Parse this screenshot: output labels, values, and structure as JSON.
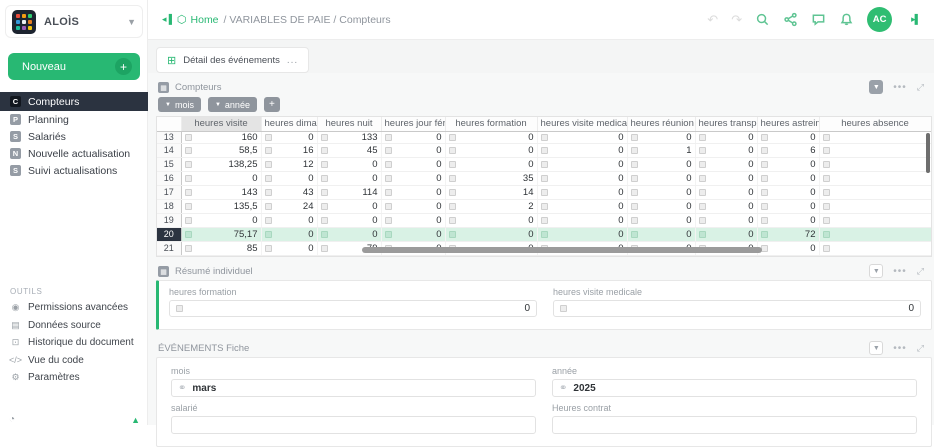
{
  "colors": {
    "accent": "#28b873",
    "selected_row": "#d9f2e5",
    "sidebar_active": "#2b3340"
  },
  "sidebar": {
    "logo_text": "ALOÌS",
    "new_button_label": "Nouveau",
    "nav_items": [
      {
        "badge": "C",
        "label": "Compteurs",
        "active": true
      },
      {
        "badge": "P",
        "label": "Planning",
        "active": false
      },
      {
        "badge": "S",
        "label": "Salariés",
        "active": false
      },
      {
        "badge": "N",
        "label": "Nouvelle actualisation",
        "active": false
      },
      {
        "badge": "S",
        "label": "Suivi actualisations",
        "active": false
      }
    ],
    "tools_title": "OUTILS",
    "tools": [
      {
        "icon": "permissions-icon",
        "glyph": "◉",
        "label": "Permissions avancées"
      },
      {
        "icon": "database-icon",
        "glyph": "▤",
        "label": "Données source"
      },
      {
        "icon": "history-icon",
        "glyph": "⊡",
        "label": "Historique du document"
      },
      {
        "icon": "code-icon",
        "glyph": "</>",
        "label": "Vue du code"
      },
      {
        "icon": "gear-icon",
        "glyph": "⚙",
        "label": "Paramètres"
      }
    ]
  },
  "header": {
    "breadcrumb_home": "Home",
    "breadcrumb_rest": "/ VARIABLES DE PAIE / Compteurs",
    "avatar_initials": "AC"
  },
  "tabbar": {
    "tab_label": "Détail des événements",
    "tab_menu": "...",
    "tab_icon": "⊞"
  },
  "counters": {
    "title": "Compteurs",
    "filter_buttons": [
      "mois",
      "année"
    ],
    "add_button": "+",
    "columns": [
      "",
      "heures visite",
      "heures diman...",
      "heures nuit",
      "heures jour férié",
      "heures formation",
      "heures visite medicale",
      "heures réunion",
      "heures transport",
      "heures astreinte",
      "heures absence"
    ],
    "sorted_column": "heures visite",
    "rows": [
      {
        "num": "13",
        "clipped": true,
        "selected": false,
        "values": [
          "160",
          "0",
          "133",
          "0",
          "0",
          "0",
          "0",
          "0",
          "0",
          ""
        ]
      },
      {
        "num": "14",
        "clipped": false,
        "selected": false,
        "values": [
          "58,5",
          "16",
          "45",
          "0",
          "0",
          "0",
          "1",
          "0",
          "6",
          ""
        ]
      },
      {
        "num": "15",
        "clipped": false,
        "selected": false,
        "values": [
          "138,25",
          "12",
          "0",
          "0",
          "0",
          "0",
          "0",
          "0",
          "0",
          ""
        ]
      },
      {
        "num": "16",
        "clipped": false,
        "selected": false,
        "values": [
          "0",
          "0",
          "0",
          "0",
          "35",
          "0",
          "0",
          "0",
          "0",
          ""
        ]
      },
      {
        "num": "17",
        "clipped": false,
        "selected": false,
        "values": [
          "143",
          "43",
          "114",
          "0",
          "14",
          "0",
          "0",
          "0",
          "0",
          ""
        ]
      },
      {
        "num": "18",
        "clipped": false,
        "selected": false,
        "values": [
          "135,5",
          "24",
          "0",
          "0",
          "2",
          "0",
          "0",
          "0",
          "0",
          ""
        ]
      },
      {
        "num": "19",
        "clipped": false,
        "selected": false,
        "values": [
          "0",
          "0",
          "0",
          "0",
          "0",
          "0",
          "0",
          "0",
          "0",
          ""
        ]
      },
      {
        "num": "20",
        "clipped": false,
        "selected": true,
        "values": [
          "75,17",
          "0",
          "0",
          "0",
          "0",
          "0",
          "0",
          "0",
          "72",
          ""
        ]
      },
      {
        "num": "21",
        "clipped": false,
        "selected": false,
        "values": [
          "85",
          "0",
          "79",
          "0",
          "0",
          "0",
          "0",
          "0",
          "0",
          ""
        ]
      }
    ]
  },
  "summary": {
    "title": "Résumé individuel",
    "fields": [
      {
        "label": "heures formation",
        "value": "0"
      },
      {
        "label": "heures visite medicale",
        "value": "0"
      }
    ]
  },
  "events": {
    "title": "ÉVÉNEMENTS Fiche",
    "fields": [
      {
        "label": "mois",
        "value": "mars",
        "linked": true
      },
      {
        "label": "année",
        "value": "2025",
        "linked": true
      },
      {
        "label": "salarié",
        "value": "",
        "linked": false
      },
      {
        "label": "Heures contrat",
        "value": "",
        "linked": false
      }
    ]
  }
}
